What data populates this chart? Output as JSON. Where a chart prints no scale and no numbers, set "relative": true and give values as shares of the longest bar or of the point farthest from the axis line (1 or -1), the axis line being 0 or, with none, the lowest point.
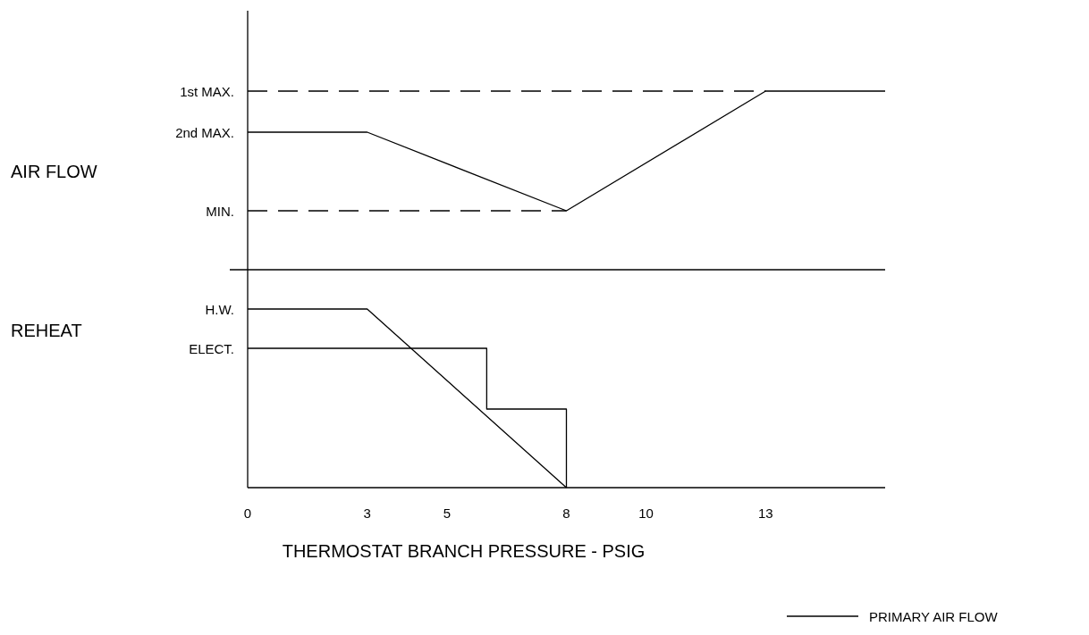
{
  "chart_data": [
    {
      "type": "line",
      "ylabel": "AIR FLOW",
      "xlim": [
        0,
        16
      ],
      "relative": true,
      "tick_labels": false,
      "legend": "bottom right",
      "annotations": [
        "1st MAX.",
        "2nd MAX.",
        "MIN."
      ],
      "series": [
        {
          "name": "PRIMARY AIR FLOW",
          "color": "#000000",
          "x": [
            0,
            3,
            8,
            13,
            16
          ],
          "values": [
            0.77,
            0.77,
            0.33,
            1,
            1
          ]
        },
        {
          "color": "#000000",
          "line_style": "dashed",
          "x": [
            0,
            13
          ],
          "values": [
            1,
            1
          ]
        },
        {
          "color": "#000000",
          "line_style": "dashed",
          "x": [
            0,
            8
          ],
          "values": [
            0.33,
            0.33
          ]
        }
      ]
    },
    {
      "type": "line",
      "ylabel": "REHEAT",
      "xlabel": "THERMOSTAT BRANCH PRESSURE - PSIG",
      "xlim": [
        0,
        16
      ],
      "relative": true,
      "xticks": [
        0,
        3,
        5,
        8,
        10,
        13
      ],
      "tick_labels": "x",
      "annotations": [
        "H.W.",
        "ELECT."
      ],
      "series": [
        {
          "color": "#000000",
          "x": [
            0,
            3,
            8
          ],
          "values": [
            1,
            1,
            0
          ]
        },
        {
          "color": "#000000",
          "x": [
            0,
            6,
            6,
            8,
            8
          ],
          "values": [
            0.78,
            0.78,
            0.44,
            0.44,
            0
          ]
        }
      ]
    }
  ]
}
